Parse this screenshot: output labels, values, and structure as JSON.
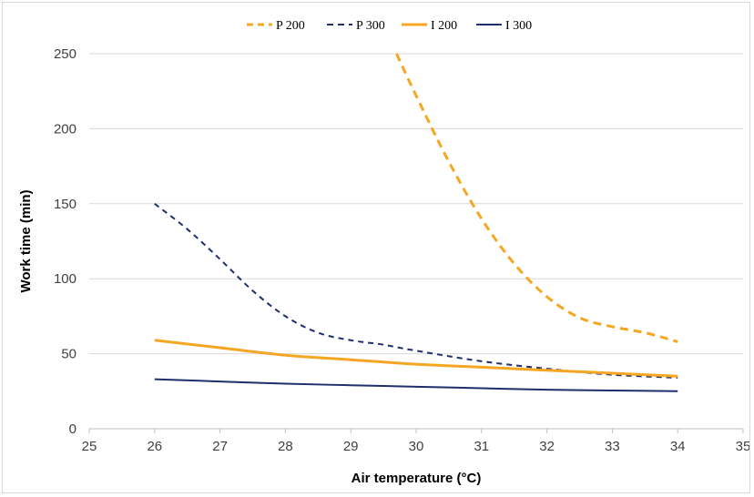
{
  "chart_data": {
    "type": "line",
    "xlabel": "Air temperature (°C)",
    "ylabel": "Work time (min)",
    "xlim": [
      25,
      35
    ],
    "ylim": [
      0,
      250
    ],
    "x_ticks": [
      25,
      26,
      27,
      28,
      29,
      30,
      31,
      32,
      33,
      34,
      35
    ],
    "y_ticks": [
      0,
      50,
      100,
      150,
      200,
      250
    ],
    "grid": "horizontal",
    "legend_position": "top",
    "series": [
      {
        "name": "P 200",
        "color": "#F5A623",
        "dash": "dashed",
        "x": [
          29.7,
          30,
          30.5,
          31,
          31.5,
          32,
          32.5,
          33,
          33.5,
          34
        ],
        "y": [
          250,
          222,
          178,
          140,
          110,
          88,
          74,
          68,
          64,
          58
        ]
      },
      {
        "name": "P 300",
        "color": "#1F2F6B",
        "dash": "dashed",
        "x": [
          26,
          26.5,
          27,
          27.5,
          28,
          28.5,
          29,
          29.5,
          30,
          31,
          32,
          33,
          34
        ],
        "y": [
          150,
          133,
          113,
          92,
          75,
          64,
          59,
          56,
          52,
          45,
          40,
          36,
          34
        ]
      },
      {
        "name": "I 200",
        "color": "#F5A623",
        "dash": "solid",
        "x": [
          26,
          27,
          28,
          29,
          30,
          31,
          32,
          33,
          34
        ],
        "y": [
          59,
          54,
          49,
          46,
          43,
          41,
          39,
          37,
          35
        ]
      },
      {
        "name": "I 300",
        "color": "#1F2F6B",
        "dash": "solid",
        "x": [
          26,
          27,
          28,
          29,
          30,
          31,
          32,
          33,
          34
        ],
        "y": [
          33,
          31.5,
          30,
          29,
          28,
          27,
          26,
          25.5,
          25
        ]
      }
    ]
  }
}
